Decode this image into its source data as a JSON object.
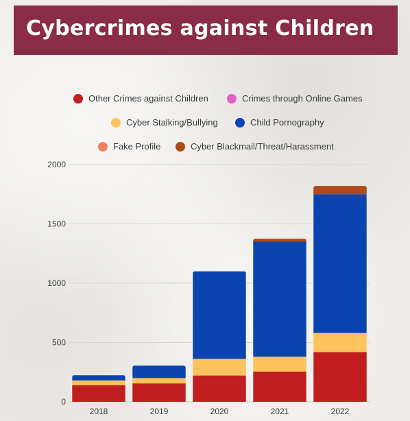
{
  "title": "Cybercrimes against Children",
  "colors": {
    "banner": "#8a2b48",
    "other_crimes": "#c11f1f",
    "online_games": "#e65fc8",
    "cyber_stalking": "#fcc35c",
    "child_pornography": "#0b44b0",
    "fake_profile": "#f47f5f",
    "cyber_blackmail": "#b14a18"
  },
  "chart_data": {
    "type": "bar",
    "stacked": true,
    "title": "Cybercrimes against Children",
    "xlabel": "",
    "ylabel": "",
    "categories": [
      "2018",
      "2019",
      "2020",
      "2021",
      "2022"
    ],
    "ylim": [
      0,
      2000
    ],
    "yticks": [
      0,
      500,
      1000,
      1500,
      2000
    ],
    "grid": true,
    "legend_position": "top",
    "series": [
      {
        "name": "Other Crimes against Children",
        "color": "#c11f1f",
        "values": [
          140,
          155,
          222,
          255,
          420
        ]
      },
      {
        "name": "Crimes through Online Games",
        "color": "#e65fc8",
        "values": [
          0,
          0,
          0,
          0,
          0
        ]
      },
      {
        "name": "Cyber Stalking/Bullying",
        "color": "#fcc35c",
        "values": [
          40,
          45,
          140,
          125,
          160
        ]
      },
      {
        "name": "Child Pornography",
        "color": "#0b44b0",
        "values": [
          44,
          105,
          738,
          970,
          1170
        ]
      },
      {
        "name": "Fake Profile",
        "color": "#f47f5f",
        "values": [
          0,
          0,
          0,
          0,
          0
        ]
      },
      {
        "name": "Cyber Blackmail/Threat/Harassment",
        "color": "#b14a18",
        "values": [
          0,
          0,
          0,
          25,
          70
        ]
      }
    ]
  }
}
